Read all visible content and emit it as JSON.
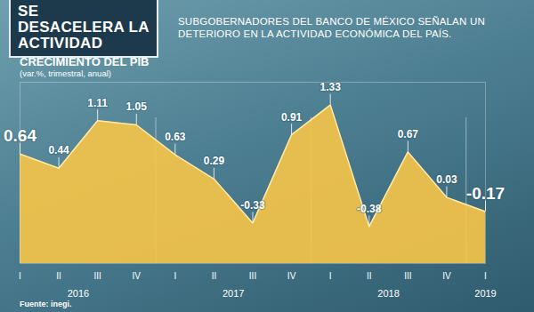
{
  "chart_data": {
    "type": "area",
    "headline": "SE DESACELERA LA ACTIVIDAD",
    "deck": "SUBGOBERNADORES DEL BANCO DE MÉXICO SEÑALAN UN DETERIORO EN LA ACTIVIDAD ECONÓMICA DEL PAÍS.",
    "title": "CRECIMIENTO DEL PIB",
    "subtitle": "(var.%, trimestral, anual)",
    "source": "Fuente: inegi.",
    "categories": [
      "I",
      "II",
      "III",
      "IV",
      "I",
      "II",
      "III",
      "IV",
      "I",
      "II",
      "III",
      "IV",
      "I"
    ],
    "years": [
      "2016",
      "2016",
      "2016",
      "2016",
      "2017",
      "2017",
      "2017",
      "2017",
      "2018",
      "2018",
      "2018",
      "2018",
      "2019"
    ],
    "values": [
      0.64,
      0.44,
      1.11,
      1.05,
      0.63,
      0.29,
      -0.33,
      0.91,
      1.33,
      -0.38,
      0.67,
      0.03,
      -0.17
    ],
    "color": "#f7c548",
    "ylim": [
      -0.9,
      1.65
    ],
    "data_labels": true,
    "tick_labels": "x"
  }
}
